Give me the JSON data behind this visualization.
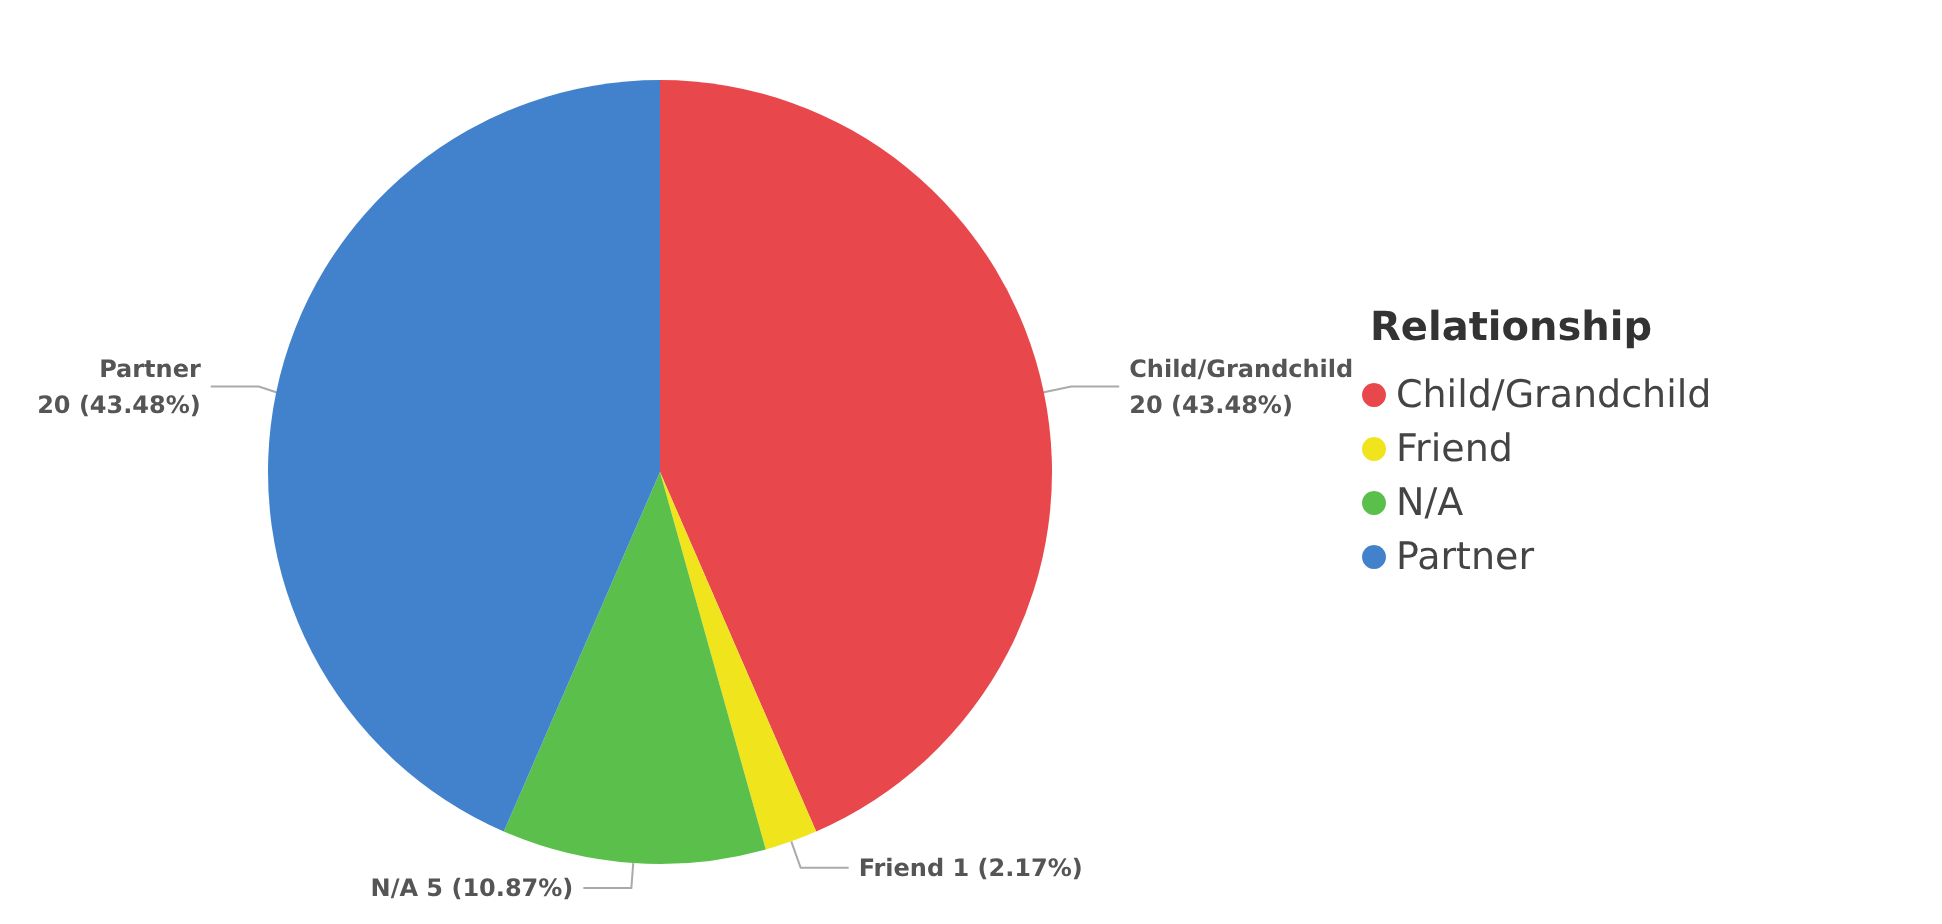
{
  "chart_data": {
    "type": "pie",
    "legend_title": "Relationship",
    "legend": "right",
    "categories": [
      "Child/Grandchild",
      "Friend",
      "N/A",
      "Partner"
    ],
    "values": [
      20,
      1,
      5,
      20
    ],
    "colors": [
      "#e8474c",
      "#f0e41c",
      "#5bbf4b",
      "#4282cc"
    ],
    "value_labels": [
      "20 (43.48%)",
      "1 (2.17%)",
      "5 (10.87%)",
      "20 (43.48%)"
    ]
  }
}
